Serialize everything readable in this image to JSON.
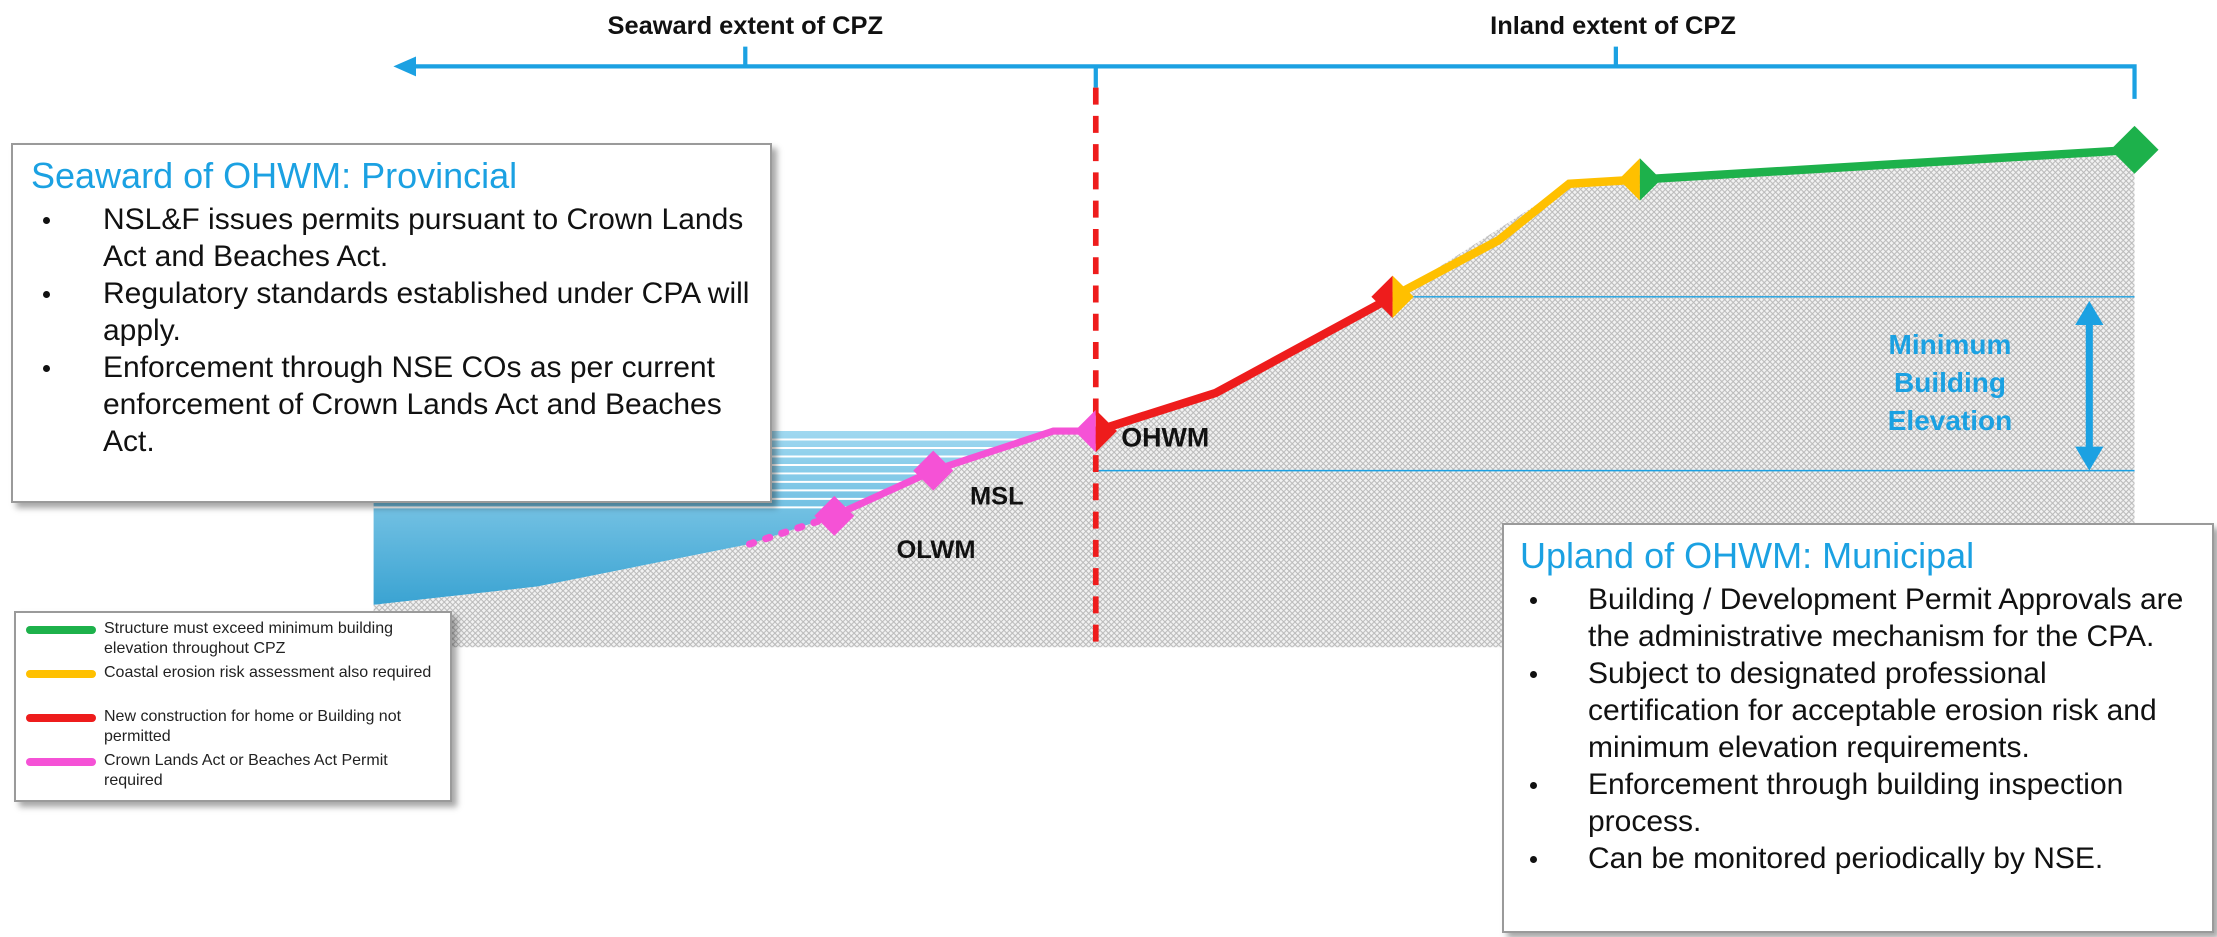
{
  "header": {
    "seaward_extent": "Seaward extent of CPZ",
    "inland_extent": "Inland extent of CPZ"
  },
  "seaward_box": {
    "title": "Seaward of OHWM: Provincial",
    "bullets": [
      "NSL&F issues permits pursuant to Crown Lands Act and Beaches Act.",
      "Regulatory standards established under CPA will apply.",
      "Enforcement through NSE COs as per current enforcement of Crown Lands Act and Beaches Act."
    ]
  },
  "upland_box": {
    "title": "Upland of OHWM: Municipal",
    "bullets": [
      "Building / Development Permit Approvals are the administrative mechanism for the CPA.",
      "Subject to designated professional certification for acceptable erosion risk and minimum elevation requirements.",
      "Enforcement through building inspection process.",
      "Can be monitored periodically by NSE."
    ]
  },
  "labels": {
    "ohwm": "OHWM",
    "msl": "MSL",
    "olwm": "OLWM",
    "min_elevation": "Minimum Building Elevation"
  },
  "legend": [
    {
      "color": "#1db14b",
      "text": "Structure must exceed minimum building elevation throughout CPZ"
    },
    {
      "color": "#ffc000",
      "text": "Coastal erosion risk assessment also required"
    },
    {
      "color": "#ee1c1c",
      "text": "New construction for home or Building not permitted"
    },
    {
      "color": "#f552d6",
      "text": "Crown Lands Act or Beaches Act Permit required"
    }
  ]
}
